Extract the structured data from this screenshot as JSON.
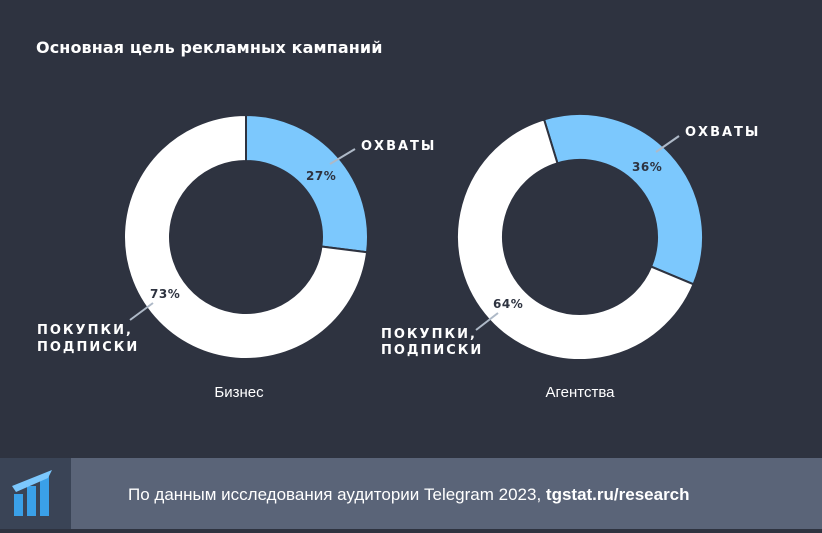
{
  "title": "Основная цель рекламных кампаний",
  "colors": {
    "background": "#2e3340",
    "reach": "#7cc8fd",
    "purchases": "#ffffff",
    "footer": "#5a6478",
    "logo": "#3aa0e8"
  },
  "chart_data": [
    {
      "type": "pie",
      "title": "",
      "caption": "Бизнес",
      "slices": [
        {
          "label": "ОХВАТЫ",
          "value": 27,
          "value_label": "27%"
        },
        {
          "label_lines": [
            "ПОКУПКИ,",
            "ПОДПИСКИ"
          ],
          "value": 73,
          "value_label": "73%"
        }
      ]
    },
    {
      "type": "pie",
      "title": "",
      "caption": "Агентства",
      "slices": [
        {
          "label": "ОХВАТЫ",
          "value": 36,
          "value_label": "36%"
        },
        {
          "label_lines": [
            "ПОКУПКИ,",
            "ПОДПИСКИ"
          ],
          "value": 64,
          "value_label": "64%"
        }
      ]
    }
  ],
  "footer": {
    "text": "По данным исследования аудитории Telegram 2023, ",
    "link": "tgstat.ru/research",
    "logo_icon": "tgstat-logo-icon"
  }
}
